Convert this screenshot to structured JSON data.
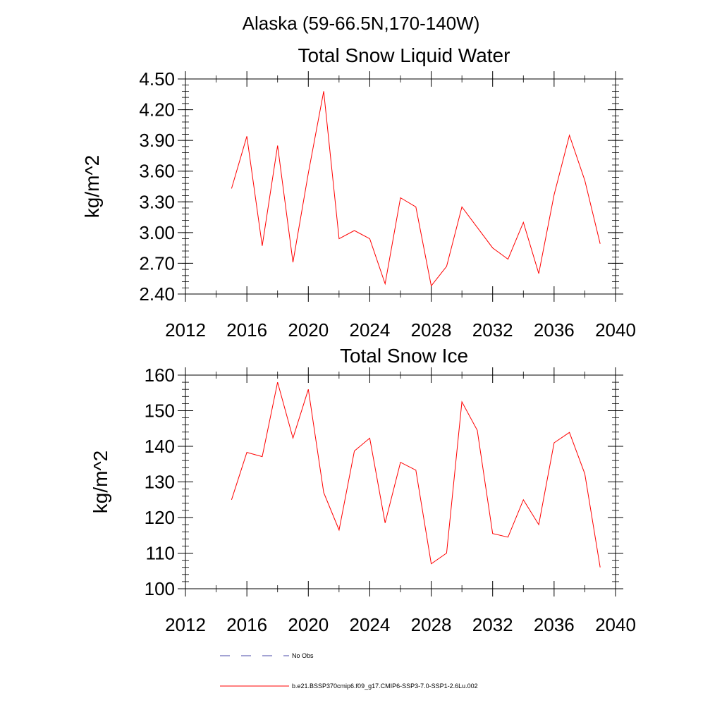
{
  "suptitle": "Alaska (59-66.5N,170-140W)",
  "colors": {
    "series": "#ff0000",
    "obs": "#4a4aa8",
    "axis": "#000000"
  },
  "chart_data": [
    {
      "type": "line",
      "title": "Total Snow Liquid Water",
      "xlabel": "",
      "ylabel": "kg/m^2",
      "xlim": [
        2012,
        2040
      ],
      "ylim": [
        2.4,
        4.5
      ],
      "x_ticks": [
        "2012",
        "2016",
        "2020",
        "2024",
        "2028",
        "2032",
        "2036",
        "2040"
      ],
      "y_ticks": [
        "2.40",
        "2.70",
        "3.00",
        "3.30",
        "3.60",
        "3.90",
        "4.20",
        "4.50"
      ],
      "grid": false,
      "series": [
        {
          "name": "b.e21.BSSP370cmip6.f09_g17.CMIP6-SSP3-7.0-SSP1-2.6Lu.002",
          "x": [
            2015,
            2016,
            2017,
            2018,
            2019,
            2020,
            2021,
            2022,
            2023,
            2024,
            2025,
            2026,
            2027,
            2028,
            2029,
            2030,
            2031,
            2032,
            2033,
            2034,
            2035,
            2036,
            2037,
            2038,
            2039
          ],
          "y": [
            3.43,
            3.94,
            2.87,
            3.85,
            2.71,
            3.58,
            4.38,
            2.94,
            3.02,
            2.94,
            2.5,
            3.34,
            3.25,
            2.48,
            2.67,
            3.25,
            3.05,
            2.85,
            2.74,
            3.1,
            2.6,
            3.37,
            3.95,
            3.51,
            2.89
          ]
        }
      ]
    },
    {
      "type": "line",
      "title": "Total Snow Ice",
      "xlabel": "",
      "ylabel": "kg/m^2",
      "xlim": [
        2012,
        2040
      ],
      "ylim": [
        100,
        160
      ],
      "x_ticks": [
        "2012",
        "2016",
        "2020",
        "2024",
        "2028",
        "2032",
        "2036",
        "2040"
      ],
      "y_ticks": [
        "100",
        "110",
        "120",
        "130",
        "140",
        "150",
        "160"
      ],
      "grid": false,
      "series": [
        {
          "name": "b.e21.BSSP370cmip6.f09_g17.CMIP6-SSP3-7.0-SSP1-2.6Lu.002",
          "x": [
            2015,
            2016,
            2017,
            2018,
            2019,
            2020,
            2021,
            2022,
            2023,
            2024,
            2025,
            2026,
            2027,
            2028,
            2029,
            2030,
            2031,
            2032,
            2033,
            2034,
            2035,
            2036,
            2037,
            2038,
            2039
          ],
          "y": [
            125,
            138.3,
            137.1,
            158,
            142.3,
            156,
            127,
            116.5,
            138.7,
            142.3,
            118.5,
            135.5,
            133.3,
            107,
            110,
            152.5,
            144.5,
            115.5,
            114.5,
            125,
            118,
            141,
            143.9,
            132.3,
            106
          ]
        }
      ]
    }
  ],
  "legend": [
    {
      "label": "No Obs",
      "style": "dashed"
    },
    {
      "label": "b.e21.BSSP370cmip6.f09_g17.CMIP6-SSP3-7.0-SSP1-2.6Lu.002",
      "style": "solid"
    }
  ]
}
